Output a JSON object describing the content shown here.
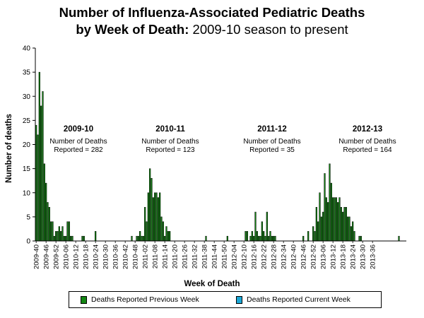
{
  "title": {
    "line1": "Number of Influenza-Associated Pediatric Deaths",
    "line2_bold": "by Week of Death:",
    "line2_rest": " 2009-10 season to present"
  },
  "colors": {
    "previous": "#138613",
    "current": "#1aa7d6"
  },
  "legend": {
    "previous_label": "Deaths Reported Previous Week",
    "current_label": "Deaths Reported Current Week"
  },
  "chart_data": {
    "type": "bar",
    "title": "Number of Influenza-Associated Pediatric Deaths by Week of Death: 2009-10 season to present",
    "xlabel": "Week of Death",
    "ylabel": "Number of deaths",
    "ylim": [
      0,
      40
    ],
    "yticks": [
      0,
      5,
      10,
      15,
      20,
      25,
      30,
      35,
      40
    ],
    "grid": false,
    "legend_position": "bottom",
    "tick_labels": [
      "2009-40",
      "2009-46",
      "2009-52",
      "2010-06",
      "2010-12",
      "2010-18",
      "2010-24",
      "2010-30",
      "2010-36",
      "2010-42",
      "2010-48",
      "2011-02",
      "2011-08",
      "2011-14",
      "2011-20",
      "2011-26",
      "2011-32",
      "2011-38",
      "2011-44",
      "2011-50",
      "2012-04",
      "2012-10",
      "2012-16",
      "2012-22",
      "2012-28",
      "2012-34",
      "2012-40",
      "2012-46",
      "2012-52",
      "2013-06",
      "2013-12",
      "2013-18",
      "2013-24",
      "2013-30",
      "2013-36"
    ],
    "week_labels_start": "2009-40",
    "series": [
      {
        "name": "Deaths Reported Previous Week",
        "values": [
          24,
          22,
          35,
          28,
          31,
          16,
          12,
          8,
          7,
          4,
          4,
          1,
          2,
          2,
          3,
          2,
          3,
          1,
          1,
          4,
          4,
          1,
          1,
          0,
          0,
          0,
          0,
          0,
          1,
          1,
          0,
          0,
          0,
          0,
          0,
          0,
          2,
          0,
          0,
          0,
          0,
          0,
          0,
          0,
          0,
          0,
          0,
          0,
          0,
          0,
          0,
          0,
          0,
          0,
          0,
          0,
          0,
          0,
          1,
          0,
          0,
          1,
          1,
          2,
          1,
          1,
          7,
          4,
          10,
          15,
          13,
          9,
          10,
          10,
          9,
          10,
          5,
          4,
          1,
          3,
          2,
          2,
          0,
          0,
          0,
          0,
          0,
          0,
          0,
          0,
          0,
          0,
          0,
          0,
          0,
          0,
          0,
          0,
          0,
          0,
          0,
          0,
          0,
          1,
          0,
          0,
          0,
          0,
          0,
          0,
          0,
          0,
          0,
          0,
          0,
          0,
          1,
          0,
          0,
          0,
          0,
          0,
          0,
          0,
          0,
          0,
          0,
          2,
          2,
          0,
          1,
          2,
          1,
          6,
          2,
          1,
          1,
          4,
          2,
          1,
          6,
          1,
          2,
          1,
          1,
          1,
          0,
          0,
          0,
          0,
          0,
          0,
          0,
          0,
          0,
          0,
          0,
          0,
          0,
          0,
          0,
          0,
          1,
          0,
          0,
          2,
          0,
          0,
          3,
          2,
          7,
          4,
          10,
          5,
          6,
          14,
          9,
          8,
          16,
          12,
          9,
          9,
          9,
          8,
          9,
          7,
          6,
          7,
          7,
          5,
          5,
          3,
          4,
          2,
          0,
          0,
          1,
          1,
          0,
          0,
          0,
          0,
          0,
          0,
          0,
          0,
          0,
          0,
          0,
          0,
          0,
          0,
          0,
          0,
          0,
          0,
          0,
          0,
          0,
          0,
          1,
          0,
          0,
          0,
          0
        ]
      },
      {
        "name": "Deaths Reported Current Week",
        "values": []
      }
    ],
    "annotations": [
      {
        "season": "2009-10",
        "text1": "Number of Deaths",
        "text2": "Reported = 282"
      },
      {
        "season": "2010-11",
        "text1": "Number of Deaths",
        "text2": "Reported = 123"
      },
      {
        "season": "2011-12",
        "text1": "Number of Deaths",
        "text2": "Reported = 35"
      },
      {
        "season": "2012-13",
        "text1": "Number of Deaths",
        "text2": "Reported = 164"
      }
    ]
  }
}
